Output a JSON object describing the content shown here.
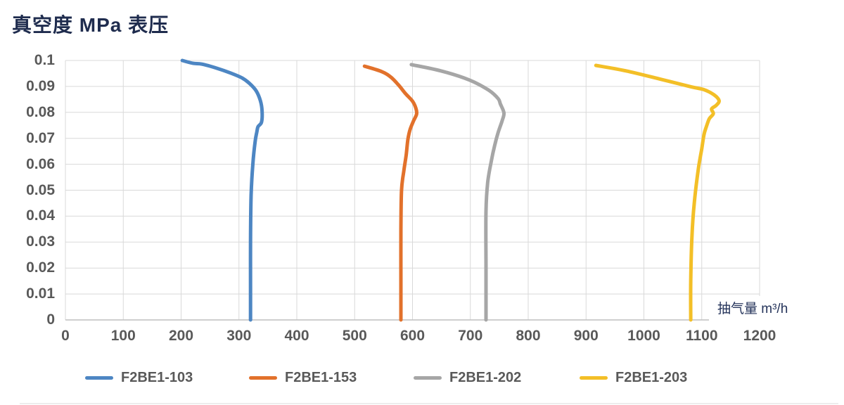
{
  "title": "真空度 MPa 表压",
  "x_axis": {
    "label": "抽气量 m³/h",
    "ticks": [
      "0",
      "100",
      "200",
      "300",
      "400",
      "500",
      "600",
      "700",
      "800",
      "900",
      "1000",
      "1100",
      "1200"
    ]
  },
  "y_axis": {
    "ticks": [
      "0.1",
      "0.09",
      "0.08",
      "0.07",
      "0.06",
      "0.05",
      "0.04",
      "0.03",
      "0.02",
      "0.01",
      "0"
    ]
  },
  "colors": {
    "grid": "#d9d9d9",
    "axis_line": "#bfbfbf",
    "tick_text": "#595959",
    "title_text": "#1f2c4e",
    "axis_label_text": "#24335a"
  },
  "chart_data": {
    "type": "line",
    "title": "真空度 MPa 表压",
    "xlabel": "抽气量 m³/h",
    "ylabel": "真空度 MPa 表压",
    "xlim": [
      0,
      1200
    ],
    "ylim": [
      0,
      0.1
    ],
    "x_tick_interval": 100,
    "y_tick_interval": 0.01,
    "grid": true,
    "legend_position": "bottom",
    "series": [
      {
        "name": "F2BE1-103",
        "color": "#4d86c3",
        "points": [
          [
            202,
            0.1
          ],
          [
            221,
            0.0989
          ],
          [
            236,
            0.0986
          ],
          [
            262,
            0.097
          ],
          [
            285,
            0.0952
          ],
          [
            305,
            0.0933
          ],
          [
            318,
            0.0912
          ],
          [
            330,
            0.0882
          ],
          [
            337,
            0.0845
          ],
          [
            340,
            0.0805
          ],
          [
            339,
            0.0762
          ],
          [
            333,
            0.0745
          ],
          [
            331,
            0.0725
          ],
          [
            328,
            0.0688
          ],
          [
            324,
            0.06
          ],
          [
            321,
            0.048
          ],
          [
            320,
            0.03
          ],
          [
            320,
            0.012
          ],
          [
            320,
            0
          ]
        ]
      },
      {
        "name": "F2BE1-153",
        "color": "#e2712b",
        "points": [
          [
            517,
            0.0978
          ],
          [
            547,
            0.0957
          ],
          [
            563,
            0.0935
          ],
          [
            576,
            0.0905
          ],
          [
            588,
            0.0872
          ],
          [
            600,
            0.0843
          ],
          [
            606,
            0.0815
          ],
          [
            607,
            0.0793
          ],
          [
            602,
            0.0768
          ],
          [
            596,
            0.0735
          ],
          [
            592,
            0.0695
          ],
          [
            589,
            0.0635
          ],
          [
            585,
            0.0575
          ],
          [
            581,
            0.05
          ],
          [
            580,
            0.035
          ],
          [
            580,
            0.015
          ],
          [
            580,
            0
          ]
        ]
      },
      {
        "name": "F2BE1-202",
        "color": "#a6a6a6",
        "points": [
          [
            598,
            0.0984
          ],
          [
            649,
            0.096
          ],
          [
            698,
            0.0925
          ],
          [
            732,
            0.0885
          ],
          [
            748,
            0.0853
          ],
          [
            752,
            0.0832
          ],
          [
            758,
            0.0798
          ],
          [
            755,
            0.0768
          ],
          [
            748,
            0.0722
          ],
          [
            742,
            0.0672
          ],
          [
            736,
            0.061
          ],
          [
            730,
            0.053
          ],
          [
            727,
            0.042
          ],
          [
            727,
            0.02
          ],
          [
            727,
            0
          ]
        ]
      },
      {
        "name": "F2BE1-203",
        "color": "#f3bf27",
        "points": [
          [
            917,
            0.0981
          ],
          [
            969,
            0.096
          ],
          [
            1030,
            0.0927
          ],
          [
            1082,
            0.0898
          ],
          [
            1103,
            0.0888
          ],
          [
            1121,
            0.0868
          ],
          [
            1130,
            0.0845
          ],
          [
            1125,
            0.0827
          ],
          [
            1117,
            0.0813
          ],
          [
            1120,
            0.0795
          ],
          [
            1113,
            0.0775
          ],
          [
            1108,
            0.0745
          ],
          [
            1104,
            0.0715
          ],
          [
            1100,
            0.066
          ],
          [
            1094,
            0.058
          ],
          [
            1087,
            0.045
          ],
          [
            1083,
            0.032
          ],
          [
            1081,
            0.015
          ],
          [
            1081,
            0
          ]
        ]
      }
    ]
  }
}
